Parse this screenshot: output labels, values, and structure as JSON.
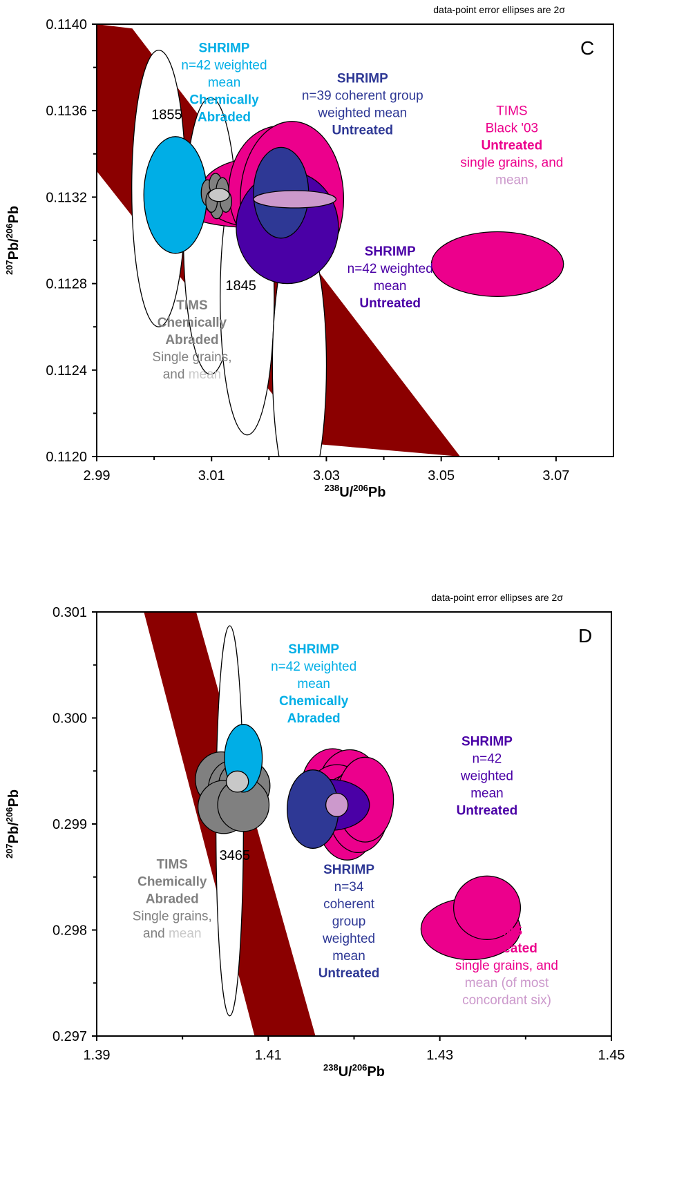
{
  "chart_data": [
    {
      "type": "scatter",
      "panel": "C",
      "note": "data-point error ellipses are 2σ",
      "xlabel": {
        "sup1": "238",
        "base1": "U/",
        "sup2": "206",
        "base2": "Pb"
      },
      "ylabel": {
        "sup1": "207",
        "base1": "Pb/",
        "sup2": "206",
        "base2": "Pb"
      },
      "xlim": [
        2.99,
        3.08
      ],
      "ylim": [
        0.112,
        0.114
      ],
      "xticks": [
        {
          "value": 2.99,
          "label": "2.99"
        },
        {
          "value": 3.01,
          "label": "3.01"
        },
        {
          "value": 3.03,
          "label": "3.03"
        },
        {
          "value": 3.05,
          "label": "3.05"
        },
        {
          "value": 3.07,
          "label": "3.07"
        }
      ],
      "yticks": [
        {
          "value": 0.112,
          "label": "0.1120"
        },
        {
          "value": 0.1124,
          "label": "0.1124"
        },
        {
          "value": 0.1128,
          "label": "0.1128"
        },
        {
          "value": 0.1132,
          "label": "0.1132"
        },
        {
          "value": 0.1136,
          "label": "0.1136"
        },
        {
          "value": 0.114,
          "label": "0.1140"
        }
      ],
      "concordia_band": [
        [
          2.99,
          0.114
        ],
        [
          2.9962,
          0.11398
        ],
        [
          3.0533,
          0.112
        ],
        [
          3.0274,
          0.11206
        ],
        [
          2.99,
          0.11332
        ]
      ],
      "ages": [
        {
          "label": "1855",
          "x": 3.0022,
          "y": 0.11356
        },
        {
          "label": "1845",
          "x": 3.0151,
          "y": 0.11277
        }
      ],
      "ellipses": [
        {
          "group": "concordia-age-marker",
          "cx": 3.0008,
          "cy": 0.11324,
          "rx": 0.0047,
          "ry": 0.00064,
          "rot": 0,
          "fill": "#ffffff"
        },
        {
          "group": "concordia-age-marker",
          "cx": 3.0098,
          "cy": 0.11302,
          "rx": 0.0047,
          "ry": 0.00064,
          "rot": 0,
          "fill": "#ffffff"
        },
        {
          "group": "concordia-age-marker",
          "cx": 3.0162,
          "cy": 0.11274,
          "rx": 0.0047,
          "ry": 0.00064,
          "rot": 0,
          "fill": "#ffffff"
        },
        {
          "group": "concordia-age-marker",
          "cx": 3.0253,
          "cy": 0.11242,
          "rx": 0.0047,
          "ry": 0.00064,
          "rot": 0,
          "fill": "#ffffff"
        },
        {
          "group": "tims-untreated",
          "cx": 3.0168,
          "cy": 0.11318,
          "rx": 0.0134,
          "ry": 0.00012,
          "rot": 0,
          "fill": "#ec008c"
        },
        {
          "group": "tims-untreated",
          "cx": 3.018,
          "cy": 0.11322,
          "rx": 0.01,
          "ry": 0.00016,
          "rot": 0,
          "fill": "#ec008c"
        },
        {
          "group": "tims-untreated",
          "cx": 3.02,
          "cy": 0.11322,
          "rx": 0.006,
          "ry": 0.00018,
          "rot": 0,
          "fill": "#ec008c"
        },
        {
          "group": "tims-untreated",
          "cx": 3.0225,
          "cy": 0.11317,
          "rx": 0.0085,
          "ry": 0.00024,
          "rot": 0,
          "fill": "#ec008c"
        },
        {
          "group": "tims-untreated",
          "cx": 3.022,
          "cy": 0.11323,
          "rx": 0.009,
          "ry": 0.0003,
          "rot": 0,
          "fill": "#ec008c"
        },
        {
          "group": "tims-untreated",
          "cx": 3.024,
          "cy": 0.11319,
          "rx": 0.009,
          "ry": 0.00036,
          "rot": 0,
          "fill": "#ec008c"
        },
        {
          "group": "tims-untreated",
          "cx": 3.0598,
          "cy": 0.11289,
          "rx": 0.0115,
          "ry": 0.00015,
          "rot": 0,
          "fill": "#ec008c"
        },
        {
          "group": "shrimp-n42-untreated",
          "cx": 3.0232,
          "cy": 0.11306,
          "rx": 0.0089,
          "ry": 0.00026,
          "rot": 0,
          "fill": "#4a00a6"
        },
        {
          "group": "shrimp-n42-chemically-abraded",
          "cx": 3.0037,
          "cy": 0.11321,
          "rx": 0.0055,
          "ry": 0.00027,
          "rot": 0,
          "fill": "#00aee6"
        },
        {
          "group": "shrimp-n39-untreated",
          "cx": 3.0221,
          "cy": 0.11322,
          "rx": 0.0048,
          "ry": 0.00021,
          "rot": 0,
          "fill": "#2e3895"
        },
        {
          "group": "tims-chemically-abraded",
          "cx": 3.0093,
          "cy": 0.11322,
          "rx": 0.0011,
          "ry": 6e-05,
          "rot": 0,
          "fill": "#808080"
        },
        {
          "group": "tims-chemically-abraded",
          "cx": 3.0107,
          "cy": 0.11326,
          "rx": 0.0011,
          "ry": 5e-05,
          "rot": 0,
          "fill": "#808080"
        },
        {
          "group": "tims-chemically-abraded",
          "cx": 3.0119,
          "cy": 0.11323,
          "rx": 0.0011,
          "ry": 6e-05,
          "rot": 0,
          "fill": "#808080"
        },
        {
          "group": "tims-chemically-abraded",
          "cx": 3.0109,
          "cy": 0.11315,
          "rx": 0.0011,
          "ry": 5e-05,
          "rot": 0,
          "fill": "#808080"
        },
        {
          "group": "tims-chemically-abraded",
          "cx": 3.0125,
          "cy": 0.11318,
          "rx": 0.001,
          "ry": 5e-05,
          "rot": 0,
          "fill": "#808080"
        },
        {
          "group": "tims-chemically-abraded",
          "cx": 3.01,
          "cy": 0.11318,
          "rx": 0.001,
          "ry": 5e-05,
          "rot": 0,
          "fill": "#808080"
        },
        {
          "group": "tims-chemically-abraded-mean",
          "cx": 3.0113,
          "cy": 0.11321,
          "rx": 0.0018,
          "ry": 3e-05,
          "rot": 0,
          "fill": "#c8c8c8"
        },
        {
          "group": "tims-untreated-mean",
          "cx": 3.0245,
          "cy": 0.11319,
          "rx": 0.0072,
          "ry": 4e-05,
          "rot": 0,
          "fill": "#cc99cc"
        }
      ],
      "labels": [
        {
          "id": "shrimp-ca",
          "lines": [
            {
              "text": "SHRIMP",
              "bold": true,
              "color": "#00aee6"
            },
            {
              "text": "n=42 weighted",
              "color": "#00aee6"
            },
            {
              "text": "mean",
              "color": "#00aee6"
            },
            {
              "text": "Chemically",
              "bold": true,
              "color": "#00aee6"
            },
            {
              "text": "Abraded",
              "bold": true,
              "color": "#00aee6"
            }
          ],
          "x": 3.0122,
          "y": 0.11387
        },
        {
          "id": "shrimp-n39",
          "lines": [
            {
              "text": "SHRIMP",
              "bold": true,
              "color": "#2e3895"
            },
            {
              "text": "n=39 coherent group",
              "color": "#2e3895"
            },
            {
              "text": "weighted mean",
              "color": "#2e3895"
            },
            {
              "text": "Untreated",
              "bold": true,
              "color": "#2e3895"
            }
          ],
          "x": 3.0363,
          "y": 0.11373
        },
        {
          "id": "tims-black",
          "lines": [
            {
              "text": "TIMS",
              "color": "#ec008c"
            },
            {
              "text": "Black '03",
              "color": "#ec008c"
            },
            {
              "text": "Untreated",
              "bold": true,
              "color": "#ec008c"
            },
            {
              "text": "single grains, and",
              "color": "#ec008c"
            },
            {
              "text": "mean",
              "color": "#cc99cc"
            }
          ],
          "x": 3.0623,
          "y": 0.11358
        },
        {
          "id": "shrimp-n42-u",
          "lines": [
            {
              "text": "SHRIMP",
              "bold": true,
              "color": "#4a00a6"
            },
            {
              "text": "n=42 weighted",
              "color": "#4a00a6"
            },
            {
              "text": "mean",
              "color": "#4a00a6"
            },
            {
              "text": "Untreated",
              "bold": true,
              "color": "#4a00a6"
            }
          ],
          "x": 3.0411,
          "y": 0.11293
        },
        {
          "id": "tims-ca",
          "lines": [
            {
              "text": "TIMS",
              "bold": true,
              "color": "#808080"
            },
            {
              "text": "Chemically",
              "bold": true,
              "color": "#808080"
            },
            {
              "text": "Abraded",
              "bold": true,
              "color": "#808080"
            },
            {
              "text": "Single grains,",
              "color": "#808080"
            },
            {
              "text": "and ",
              "color": "#808080",
              "inline_next": "mean",
              "inline_color": "#c8c8c8"
            }
          ],
          "x": 3.0066,
          "y": 0.11268
        }
      ]
    },
    {
      "type": "scatter",
      "panel": "D",
      "note": "data-point error ellipses are 2σ",
      "xlabel": {
        "sup1": "238",
        "base1": "U/",
        "sup2": "206",
        "base2": "Pb"
      },
      "ylabel": {
        "sup1": "207",
        "base1": "Pb/",
        "sup2": "206",
        "base2": "Pb"
      },
      "xlim": [
        1.39,
        1.45
      ],
      "ylim": [
        0.297,
        0.301
      ],
      "xticks": [
        {
          "value": 1.39,
          "label": "1.39"
        },
        {
          "value": 1.41,
          "label": "1.41"
        },
        {
          "value": 1.43,
          "label": "1.43"
        },
        {
          "value": 1.45,
          "label": "1.45"
        }
      ],
      "yticks": [
        {
          "value": 0.297,
          "label": "0.297"
        },
        {
          "value": 0.298,
          "label": "0.298"
        },
        {
          "value": 0.299,
          "label": "0.299"
        },
        {
          "value": 0.3,
          "label": "0.300"
        },
        {
          "value": 0.301,
          "label": "0.301"
        }
      ],
      "concordia_band": [
        [
          1.3955,
          0.301
        ],
        [
          1.4016,
          0.301
        ],
        [
          1.4155,
          0.297
        ],
        [
          1.4084,
          0.297
        ]
      ],
      "ages": [
        {
          "label": "3465",
          "x": 1.4061,
          "y": 0.29866
        }
      ],
      "ellipses": [
        {
          "group": "concordia-age-marker",
          "cx": 1.4055,
          "cy": 0.29903,
          "rx": 0.0016,
          "ry": 0.00184,
          "rot": 0,
          "fill": "#ffffff"
        },
        {
          "group": "tims-untreated",
          "cx": 1.4175,
          "cy": 0.29933,
          "rx": 0.0037,
          "ry": 0.00038,
          "rot": 0,
          "fill": "#ec008c"
        },
        {
          "group": "tims-untreated",
          "cx": 1.4195,
          "cy": 0.2993,
          "rx": 0.0038,
          "ry": 0.0004,
          "rot": 0,
          "fill": "#ec008c"
        },
        {
          "group": "tims-untreated",
          "cx": 1.418,
          "cy": 0.29918,
          "rx": 0.0039,
          "ry": 0.00038,
          "rot": 0,
          "fill": "#ec008c"
        },
        {
          "group": "tims-untreated",
          "cx": 1.4192,
          "cy": 0.29906,
          "rx": 0.0035,
          "ry": 0.0004,
          "rot": 0,
          "fill": "#ec008c"
        },
        {
          "group": "tims-untreated",
          "cx": 1.4205,
          "cy": 0.29913,
          "rx": 0.0035,
          "ry": 0.0004,
          "rot": 0,
          "fill": "#ec008c"
        },
        {
          "group": "tims-untreated",
          "cx": 1.4213,
          "cy": 0.29923,
          "rx": 0.0033,
          "ry": 0.0004,
          "rot": 0,
          "fill": "#ec008c"
        },
        {
          "group": "tims-untreated",
          "cx": 1.4336,
          "cy": 0.29801,
          "rx": 0.0058,
          "ry": 0.00029,
          "rot": 0,
          "fill": "#ec008c"
        },
        {
          "group": "tims-untreated",
          "cx": 1.4355,
          "cy": 0.29821,
          "rx": 0.0039,
          "ry": 0.0003,
          "rot": 0,
          "fill": "#ec008c"
        },
        {
          "group": "tims-chemically-abraded",
          "cx": 1.4045,
          "cy": 0.29942,
          "rx": 0.003,
          "ry": 0.00026,
          "rot": 0,
          "fill": "#808080"
        },
        {
          "group": "tims-chemically-abraded",
          "cx": 1.4058,
          "cy": 0.29932,
          "rx": 0.0028,
          "ry": 0.00028,
          "rot": 0,
          "fill": "#808080"
        },
        {
          "group": "tims-chemically-abraded",
          "cx": 1.4072,
          "cy": 0.29936,
          "rx": 0.003,
          "ry": 0.00025,
          "rot": 0,
          "fill": "#808080"
        },
        {
          "group": "tims-chemically-abraded",
          "cx": 1.4048,
          "cy": 0.29916,
          "rx": 0.003,
          "ry": 0.00025,
          "rot": 0,
          "fill": "#808080"
        },
        {
          "group": "tims-chemically-abraded",
          "cx": 1.4071,
          "cy": 0.29918,
          "rx": 0.003,
          "ry": 0.00025,
          "rot": 0,
          "fill": "#808080"
        },
        {
          "group": "shrimp-n42-untreated",
          "cx": 1.4172,
          "cy": 0.29918,
          "rx": 0.0046,
          "ry": 0.00024,
          "rot": 0,
          "fill": "#4a00a6"
        },
        {
          "group": "shrimp-n34-untreated",
          "cx": 1.4152,
          "cy": 0.29914,
          "rx": 0.003,
          "ry": 0.00037,
          "rot": 0,
          "fill": "#2e3895"
        },
        {
          "group": "shrimp-n42-chemically-abraded",
          "cx": 1.4071,
          "cy": 0.29962,
          "rx": 0.0022,
          "ry": 0.00032,
          "rot": 0,
          "fill": "#00aee6"
        },
        {
          "group": "tims-chemically-abraded-mean",
          "cx": 1.4064,
          "cy": 0.2994,
          "rx": 0.0013,
          "ry": 0.0001,
          "rot": 0,
          "fill": "#c8c8c8"
        },
        {
          "group": "tims-untreated-mean",
          "cx": 1.418,
          "cy": 0.29918,
          "rx": 0.0013,
          "ry": 0.00011,
          "rot": 0,
          "fill": "#cc99cc"
        }
      ],
      "labels": [
        {
          "id": "shrimp-ca",
          "lines": [
            {
              "text": "SHRIMP",
              "bold": true,
              "color": "#00aee6"
            },
            {
              "text": "n=42 weighted",
              "color": "#00aee6"
            },
            {
              "text": "mean",
              "color": "#00aee6"
            },
            {
              "text": "Chemically",
              "bold": true,
              "color": "#00aee6"
            },
            {
              "text": "Abraded",
              "bold": true,
              "color": "#00aee6"
            }
          ],
          "x": 1.4153,
          "y": 0.30061
        },
        {
          "id": "shrimp-n42-u",
          "lines": [
            {
              "text": "SHRIMP",
              "bold": true,
              "color": "#4a00a6"
            },
            {
              "text": "n=42",
              "color": "#4a00a6"
            },
            {
              "text": "weighted",
              "color": "#4a00a6"
            },
            {
              "text": "mean",
              "color": "#4a00a6"
            },
            {
              "text": "Untreated",
              "bold": true,
              "color": "#4a00a6"
            }
          ],
          "x": 1.4355,
          "y": 0.29974
        },
        {
          "id": "tims-ca",
          "lines": [
            {
              "text": "TIMS",
              "bold": true,
              "color": "#808080"
            },
            {
              "text": "Chemically",
              "bold": true,
              "color": "#808080"
            },
            {
              "text": "Abraded",
              "bold": true,
              "color": "#808080"
            },
            {
              "text": "Single grains,",
              "color": "#808080"
            },
            {
              "text": "and ",
              "color": "#808080",
              "inline_next": "mean",
              "inline_color": "#c8c8c8"
            }
          ],
          "x": 1.3988,
          "y": 0.29858
        },
        {
          "id": "shrimp-n34",
          "lines": [
            {
              "text": "SHRIMP",
              "bold": true,
              "color": "#2e3895"
            },
            {
              "text": "n=34",
              "color": "#2e3895"
            },
            {
              "text": "coherent",
              "color": "#2e3895"
            },
            {
              "text": "group",
              "color": "#2e3895"
            },
            {
              "text": "weighted",
              "color": "#2e3895"
            },
            {
              "text": "mean",
              "color": "#2e3895"
            },
            {
              "text": "Untreated",
              "bold": true,
              "color": "#2e3895"
            }
          ],
          "x": 1.4194,
          "y": 0.29853
        },
        {
          "id": "tims-untreated",
          "lines": [
            {
              "text": "TIMS",
              "bold": true,
              "color": "#ec008c"
            },
            {
              "text": "Untreated",
              "bold": true,
              "color": "#ec008c"
            },
            {
              "text": "single grains, and",
              "color": "#ec008c"
            },
            {
              "text": "mean (of most",
              "color": "#cc99cc"
            },
            {
              "text": "concordant six)",
              "color": "#cc99cc"
            }
          ],
          "x": 1.4378,
          "y": 0.29795
        }
      ]
    }
  ],
  "colors": {
    "band": "#8b0000",
    "axis": "#000000"
  }
}
